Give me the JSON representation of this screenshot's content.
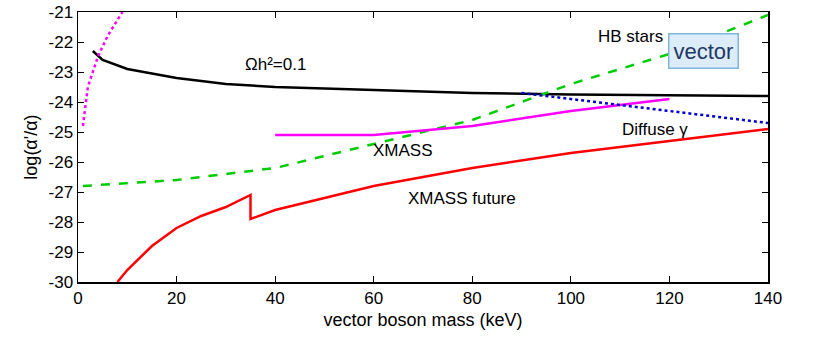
{
  "chart_data": {
    "type": "line",
    "x_label": "vector boson mass (keV)",
    "y_label": "log(α'/α)",
    "xlim": [
      0,
      140
    ],
    "xticks": [
      0,
      20,
      40,
      60,
      80,
      100,
      120,
      140
    ],
    "ylim": [
      -30,
      -21
    ],
    "yticks": [
      -30,
      -29,
      -28,
      -27,
      -26,
      -25,
      -24,
      -23,
      -22,
      -21
    ],
    "grid": false,
    "series": [
      {
        "color": "#000000",
        "line_style": "solid",
        "x": [
          3,
          5,
          10,
          20,
          30,
          40,
          60,
          80,
          100,
          120,
          140
        ],
        "values": [
          -22.3,
          -22.6,
          -22.9,
          -23.2,
          -23.4,
          -23.5,
          -23.6,
          -23.7,
          -23.75,
          -23.78,
          -23.8
        ]
      },
      {
        "color": "#00cc00",
        "line_style": "dash",
        "x": [
          1,
          20,
          40,
          60,
          80,
          90,
          100,
          120,
          140
        ],
        "values": [
          -26.8,
          -26.6,
          -26.2,
          -25.4,
          -24.6,
          -24.0,
          -23.4,
          -22.4,
          -21.1
        ]
      },
      {
        "color": "#ff00ff",
        "line_style": "dot",
        "x": [
          1,
          2,
          4,
          6,
          9
        ],
        "values": [
          -24.8,
          -23.5,
          -22.5,
          -21.8,
          -21.0
        ]
      },
      {
        "color": "#ff00ff",
        "line_style": "solid",
        "x": [
          40,
          60,
          80,
          100,
          120
        ],
        "values": [
          -25.1,
          -25.1,
          -24.8,
          -24.3,
          -23.9
        ]
      },
      {
        "color": "#0000cc",
        "line_style": "dot",
        "x": [
          90,
          100,
          120,
          140
        ],
        "values": [
          -23.7,
          -23.9,
          -24.3,
          -24.7
        ]
      },
      {
        "color": "#ff0000",
        "line_style": "solid",
        "x": [
          8,
          10,
          15,
          20,
          25,
          30,
          35,
          35,
          40,
          50,
          60,
          80,
          100,
          120,
          140
        ],
        "values": [
          -30.0,
          -29.6,
          -28.8,
          -28.2,
          -27.8,
          -27.5,
          -27.1,
          -27.9,
          -27.6,
          -27.2,
          -26.8,
          -26.2,
          -25.7,
          -25.3,
          -24.9
        ]
      }
    ],
    "annotations": [
      {
        "text": "HB stars",
        "x": 112,
        "y": -21.8
      },
      {
        "text": "Ωh²=0.1",
        "x": 40,
        "y": -22.75
      },
      {
        "text": "Diffuse γ",
        "x": 117,
        "y": -24.9
      },
      {
        "text": "XMASS",
        "x": 66,
        "y": -25.6
      },
      {
        "text": "XMASS future",
        "x": 78,
        "y": -27.2
      }
    ],
    "label": {
      "text": "vector",
      "x": 127,
      "y": -22.3
    }
  }
}
